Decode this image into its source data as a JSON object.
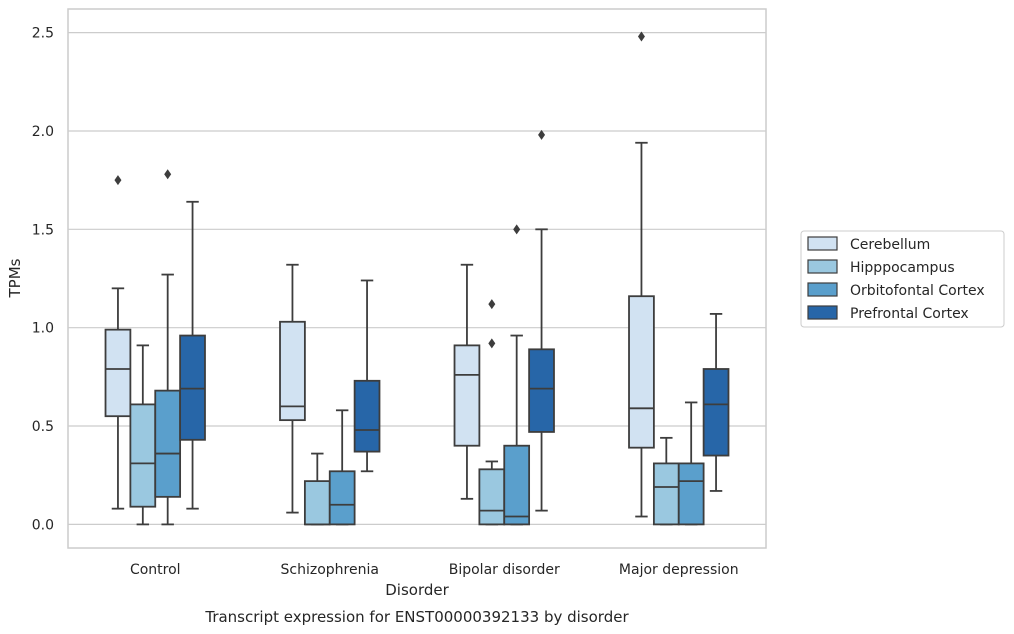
{
  "chart_data": {
    "type": "boxplot",
    "title": "",
    "caption": "Transcript expression for ENST00000392133 by disorder",
    "xlabel": "Disorder",
    "ylabel": "TPMs",
    "ylim": [
      -0.12,
      2.62
    ],
    "yticks": [
      0.0,
      0.5,
      1.0,
      1.5,
      2.0,
      2.5
    ],
    "ytick_labels": [
      "0.0",
      "0.5",
      "1.0",
      "1.5",
      "2.0",
      "2.5"
    ],
    "grid": "horizontal",
    "legend_position": "right",
    "categories": [
      "Control",
      "Schizophrenia",
      "Bipolar disorder",
      "Major depression"
    ],
    "series": [
      {
        "name": "Cerebellum",
        "color": "#d1e2f2",
        "boxes": [
          {
            "whislo": 0.08,
            "q1": 0.55,
            "med": 0.79,
            "q3": 0.99,
            "whishi": 1.2,
            "fliers": [
              1.75
            ]
          },
          {
            "whislo": 0.06,
            "q1": 0.53,
            "med": 0.6,
            "q3": 1.03,
            "whishi": 1.32,
            "fliers": []
          },
          {
            "whislo": 0.13,
            "q1": 0.4,
            "med": 0.76,
            "q3": 0.91,
            "whishi": 1.32,
            "fliers": []
          },
          {
            "whislo": 0.04,
            "q1": 0.39,
            "med": 0.59,
            "q3": 1.16,
            "whishi": 1.94,
            "fliers": [
              2.48
            ]
          }
        ]
      },
      {
        "name": "Hipppocampus",
        "color": "#9ac8e0",
        "boxes": [
          {
            "whislo": 0.0,
            "q1": 0.09,
            "med": 0.31,
            "q3": 0.61,
            "whishi": 0.91,
            "fliers": []
          },
          {
            "whislo": 0.0,
            "q1": 0.0,
            "med": 0.0,
            "q3": 0.22,
            "whishi": 0.36,
            "fliers": []
          },
          {
            "whislo": 0.0,
            "q1": 0.0,
            "med": 0.07,
            "q3": 0.28,
            "whishi": 0.32,
            "fliers": [
              0.92,
              1.12
            ]
          },
          {
            "whislo": 0.0,
            "q1": 0.0,
            "med": 0.19,
            "q3": 0.31,
            "whishi": 0.44,
            "fliers": []
          }
        ]
      },
      {
        "name": "Orbitofontal Cortex",
        "color": "#5a9fcc",
        "boxes": [
          {
            "whislo": 0.0,
            "q1": 0.14,
            "med": 0.36,
            "q3": 0.68,
            "whishi": 1.27,
            "fliers": [
              1.78
            ]
          },
          {
            "whislo": 0.0,
            "q1": 0.0,
            "med": 0.1,
            "q3": 0.27,
            "whishi": 0.58,
            "fliers": []
          },
          {
            "whislo": 0.0,
            "q1": 0.0,
            "med": 0.04,
            "q3": 0.4,
            "whishi": 0.96,
            "fliers": [
              1.5
            ]
          },
          {
            "whislo": 0.0,
            "q1": 0.0,
            "med": 0.22,
            "q3": 0.31,
            "whishi": 0.62,
            "fliers": []
          }
        ]
      },
      {
        "name": "Prefrontal Cortex",
        "color": "#2766a8",
        "boxes": [
          {
            "whislo": 0.08,
            "q1": 0.43,
            "med": 0.69,
            "q3": 0.96,
            "whishi": 1.64,
            "fliers": []
          },
          {
            "whislo": 0.27,
            "q1": 0.37,
            "med": 0.48,
            "q3": 0.73,
            "whishi": 1.24,
            "fliers": []
          },
          {
            "whislo": 0.07,
            "q1": 0.47,
            "med": 0.69,
            "q3": 0.89,
            "whishi": 1.5,
            "fliers": [
              1.98
            ]
          },
          {
            "whislo": 0.17,
            "q1": 0.35,
            "med": 0.61,
            "q3": 0.79,
            "whishi": 1.07,
            "fliers": []
          }
        ]
      }
    ],
    "colors": {
      "grid": "#cccccc",
      "frame": "#cccccc",
      "box_edge": "#3d3d3d",
      "text": "#262626"
    }
  }
}
